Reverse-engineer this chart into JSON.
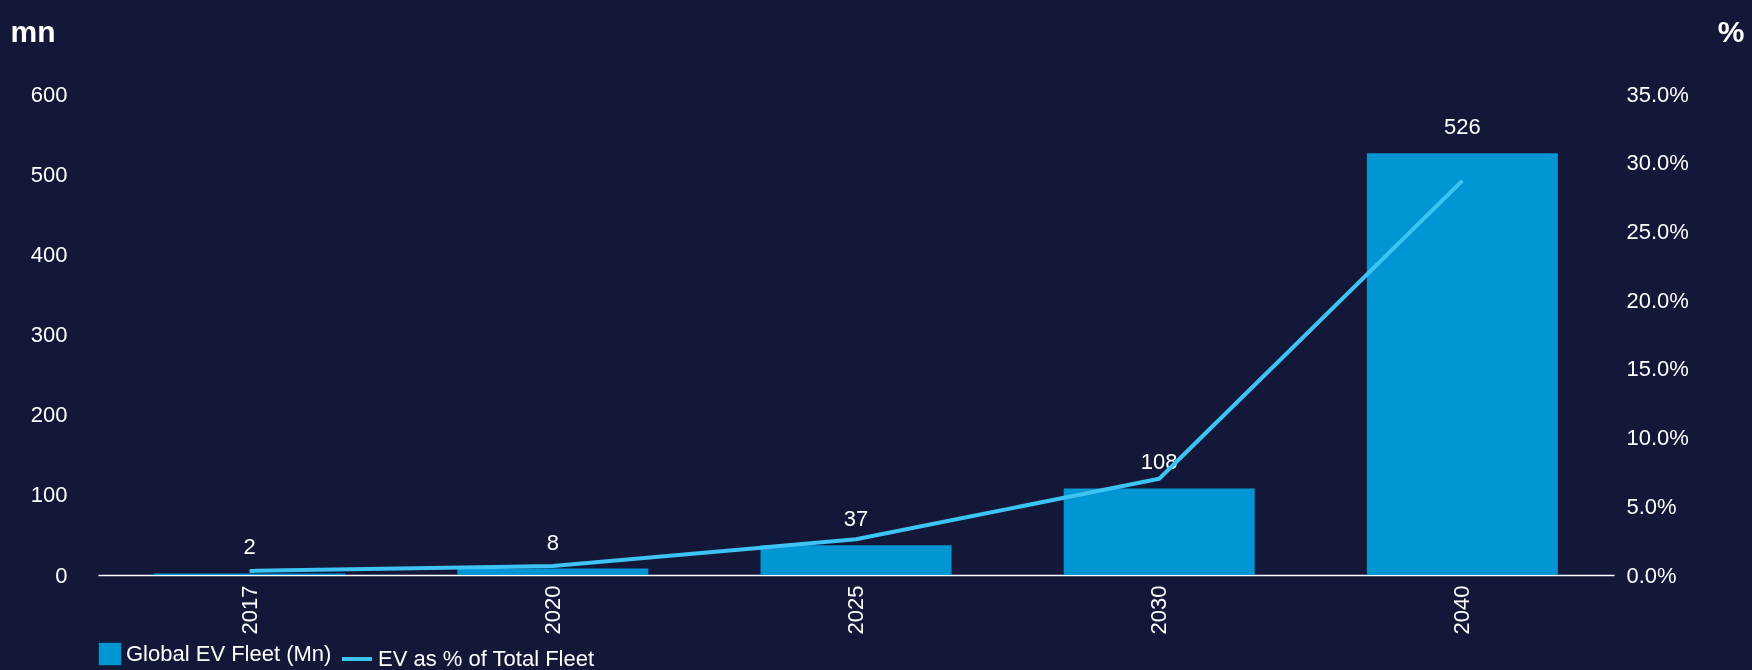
{
  "chart_data": {
    "type": "bar",
    "categories": [
      "2017",
      "2020",
      "2025",
      "2030",
      "2040"
    ],
    "series": [
      {
        "name": "Global EV Fleet (Mn)",
        "color": "#0095d3",
        "values": [
          2,
          8,
          37,
          108,
          526
        ],
        "value_labels": [
          "2",
          "8",
          "37",
          "108",
          "526"
        ]
      },
      {
        "name": "EV as % of Total Fleet",
        "type": "line",
        "color": "#3ec3f5",
        "axis": "y2",
        "values": [
          0.3,
          0.65,
          2.6,
          7.0,
          28.7
        ]
      }
    ],
    "ylabel": "mn",
    "y2label": "%",
    "ylim": [
      0,
      600
    ],
    "yticks": [
      0,
      100,
      200,
      300,
      400,
      500,
      600
    ],
    "y2lim": [
      0,
      35
    ],
    "y2ticks": [
      {
        "value": 0,
        "label": "0.0%"
      },
      {
        "value": 5,
        "label": "5.0%"
      },
      {
        "value": 10,
        "label": "10.0%"
      },
      {
        "value": 15,
        "label": "15.0%"
      },
      {
        "value": 20,
        "label": "20.0%"
      },
      {
        "value": 25,
        "label": "25.0%"
      },
      {
        "value": 30,
        "label": "30.0%"
      },
      {
        "value": 35,
        "label": "35.0%"
      }
    ],
    "grid": false,
    "legend": "bottom",
    "marker": "none",
    "line_style": "solid"
  }
}
